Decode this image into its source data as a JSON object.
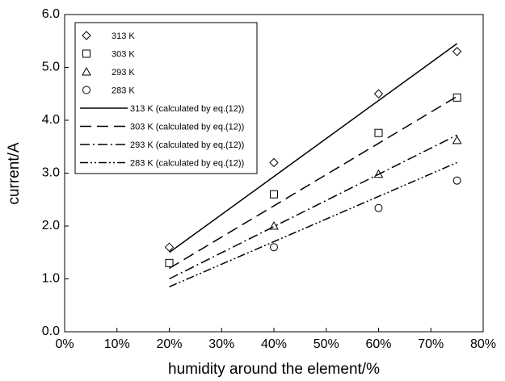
{
  "chart_data": {
    "type": "scatter",
    "x_label": "humidity around the element/%",
    "y_label": "current/A",
    "xlim": [
      0,
      80
    ],
    "xticks": [
      {
        "value": 0,
        "label": "0%"
      },
      {
        "value": 10,
        "label": "10%"
      },
      {
        "value": 20,
        "label": "20%"
      },
      {
        "value": 30,
        "label": "30%"
      },
      {
        "value": 40,
        "label": "40%"
      },
      {
        "value": 50,
        "label": "50%"
      },
      {
        "value": 60,
        "label": "60%"
      },
      {
        "value": 70,
        "label": "70%"
      },
      {
        "value": 80,
        "label": "80%"
      }
    ],
    "ylim": [
      0,
      6
    ],
    "yticks": [
      {
        "value": 0,
        "label": "0.0"
      },
      {
        "value": 1,
        "label": "1.0"
      },
      {
        "value": 2,
        "label": "2.0"
      },
      {
        "value": 3,
        "label": "3.0"
      },
      {
        "value": 4,
        "label": "4.0"
      },
      {
        "value": 5,
        "label": "5.0"
      },
      {
        "value": 6,
        "label": "6.0"
      }
    ],
    "series": [
      {
        "name": "313 K",
        "color": "#000000",
        "marker": "diamond",
        "x": [
          20,
          40,
          60,
          75
        ],
        "values": [
          1.6,
          3.2,
          4.5,
          5.3
        ]
      },
      {
        "name": "303 K",
        "color": "#000000",
        "marker": "square",
        "x": [
          20,
          40,
          60,
          75
        ],
        "values": [
          1.3,
          2.6,
          3.76,
          4.43
        ]
      },
      {
        "name": "293 K",
        "color": "#000000",
        "marker": "triangle",
        "x": [
          40,
          60,
          75
        ],
        "values": [
          2.0,
          2.98,
          3.62
        ]
      },
      {
        "name": "283 K",
        "color": "#000000",
        "marker": "circle",
        "x": [
          40,
          60,
          75
        ],
        "values": [
          1.6,
          2.34,
          2.86
        ]
      },
      {
        "name": "313 K (calculated by eq.(12))",
        "color": "#000000",
        "dash": "none",
        "x": [
          20,
          75
        ],
        "values": [
          1.5,
          5.45
        ]
      },
      {
        "name": "303 K (calculated by eq.(12))",
        "color": "#000000",
        "dash": "14,7",
        "x": [
          20,
          75
        ],
        "values": [
          1.2,
          4.45
        ]
      },
      {
        "name": "293 K (calculated by eq.(12))",
        "color": "#000000",
        "dash": "12,4,2,4",
        "x": [
          20,
          75
        ],
        "values": [
          1.0,
          3.72
        ]
      },
      {
        "name": "283 K (calculated by eq.(12))",
        "color": "#000000",
        "dash": "10,3,2,3,2,3",
        "x": [
          20,
          75
        ],
        "values": [
          0.85,
          3.2
        ]
      }
    ]
  }
}
